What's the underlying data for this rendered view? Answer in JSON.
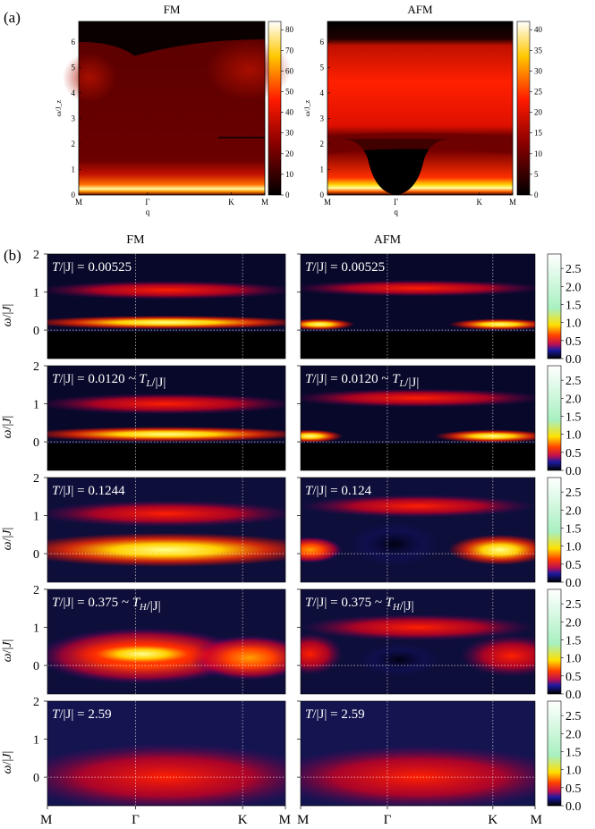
{
  "chart_data": {
    "type": "heatmap",
    "panel_a": {
      "label": "(a)",
      "xlabel": "q",
      "ylabel": "ω/J_z",
      "x_ticks": [
        "M",
        "Γ",
        "K",
        "M"
      ],
      "y_ticks": [
        "0",
        "1",
        "2",
        "3",
        "4",
        "5",
        "6"
      ],
      "ylim": [
        0,
        6.8
      ],
      "panels": [
        {
          "title": "FM",
          "colorbar_range": [
            0,
            84
          ],
          "colorbar_ticks": [
            "0",
            "10",
            "20",
            "30",
            "40",
            "50",
            "60",
            "70",
            "80"
          ]
        },
        {
          "title": "AFM",
          "colorbar_range": [
            0,
            42
          ],
          "colorbar_ticks": [
            "0",
            "5",
            "10",
            "15",
            "20",
            "25",
            "30",
            "35",
            "40"
          ]
        }
      ]
    },
    "panel_b": {
      "label": "(b)",
      "columns": [
        "FM",
        "AFM"
      ],
      "ylabel": "ω/|J|",
      "x_ticks": [
        "M",
        "Γ",
        "K",
        "M"
      ],
      "y_ticks": [
        "0",
        "1",
        "2"
      ],
      "ylim": [
        -0.75,
        2.0
      ],
      "colorbar_range": [
        0,
        2.9
      ],
      "colorbar_ticks": [
        "0.0",
        "0.5",
        "1.0",
        "1.5",
        "2.0",
        "2.5"
      ],
      "rows": [
        {
          "fm_label": "T/|J| = 0.00525",
          "afm_label": "T/|J| = 0.00525"
        },
        {
          "fm_label": "T/|J| = 0.0120 ~ T_L/|J|",
          "afm_label": "T/|J| = 0.0120 ~ T_L/|J|"
        },
        {
          "fm_label": "T/|J| = 0.1244",
          "afm_label": "T/|J| = 0.124"
        },
        {
          "fm_label": "T/|J| = 0.375 ~ T_H/|J|",
          "afm_label": "T/|J| = 0.375 ~ T_H/|J|"
        },
        {
          "fm_label": "T/|J| = 2.59",
          "afm_label": "T/|J| = 2.59"
        }
      ]
    }
  }
}
